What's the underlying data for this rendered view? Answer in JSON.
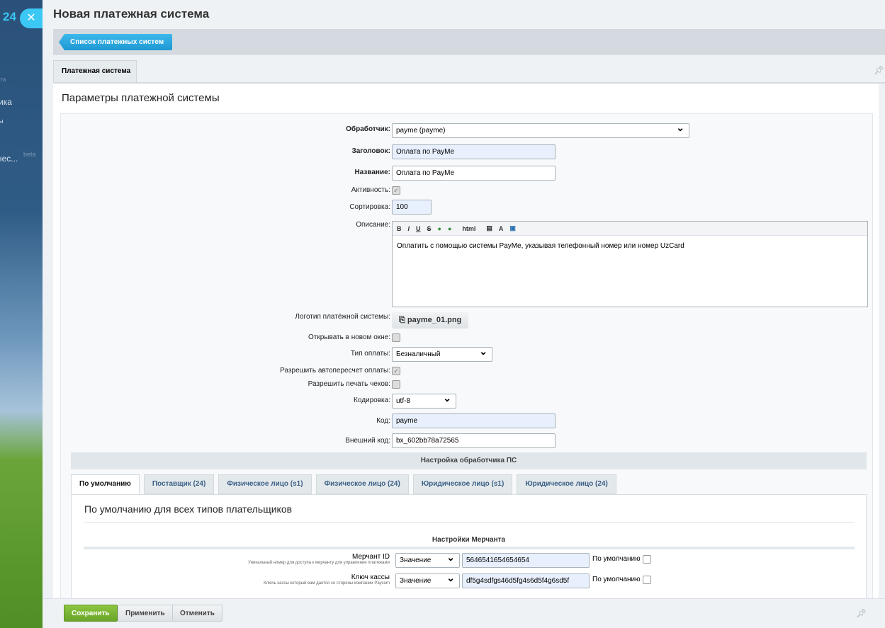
{
  "sidebar": {
    "logo_fragment": "24",
    "items": [
      "ета",
      "ика",
      "ы",
      "нес...",
      "beta"
    ]
  },
  "title": "Новая платежная система",
  "toolbar": {
    "back_label": "Список платежных систем"
  },
  "main_tab": "Платежная система",
  "section_title": "Параметры платежной системы",
  "form": {
    "handler_label": "Обработчик:",
    "handler_value": "payme (payme)",
    "heading_label": "Заголовок:",
    "heading_value": "Оплата по PayMe",
    "name_label": "Название:",
    "name_value": "Оплата по PayMe",
    "active_label": "Активность:",
    "active_checked": true,
    "sort_label": "Сортировка:",
    "sort_value": "100",
    "description_label": "Описание:",
    "editor_tools": [
      "B",
      "I",
      "U",
      "S",
      "link-icon",
      "unlink-icon",
      "html",
      "paste-icon",
      "font-icon",
      "image-icon"
    ],
    "description_value": "Оплатить с помощью системы PayMe, указывая телефонный номер или номер UzCard",
    "logo_label": "Логотип платёжной системы:",
    "logo_file": "payme_01.png",
    "new_window_label": "Открывать в новом окне:",
    "new_window_checked": false,
    "pay_type_label": "Тип оплаты:",
    "pay_type_value": "Безналичный",
    "autorecalc_label": "Разрешить автопересчет оплаты:",
    "autorecalc_checked": true,
    "print_label": "Разрешить печать чеков:",
    "print_checked": false,
    "encoding_label": "Кодировка:",
    "encoding_value": "utf-8",
    "code_label": "Код:",
    "code_value": "payme",
    "ext_code_label": "Внешний код:",
    "ext_code_value": "bx_602bb78a72565"
  },
  "handler_settings": {
    "title": "Настройка обработчика ПС",
    "tabs": [
      "По умолчанию",
      "Поставщик (24)",
      "Физическое лицо (s1)",
      "Физическое лицо (24)",
      "Юридическое лицо (s1)",
      "Юридическое лицо (24)"
    ],
    "active_tab": 0,
    "heading": "По умолчанию для всех типов плательщиков",
    "merchant_section": "Настройки Мерчанта",
    "rows": [
      {
        "label": "Мерчант ID",
        "hint": "Уникальный номер для доступа к мерчанту для управление платежами",
        "type": "Значение",
        "value": "5646541654654654",
        "default_label": "По умолчанию"
      },
      {
        "label": "Ключ кассы",
        "hint": "Ключь кассы который вам дается со стороны компании Paycom",
        "type": "Значение",
        "value": "df5g4sdfgs46d5fg4s6d5f4g6sd5f",
        "default_label": "По умолчанию"
      }
    ]
  },
  "buttons": {
    "save": "Сохранить",
    "apply": "Применить",
    "cancel": "Отменить"
  },
  "colors": {
    "accent": "#3bc8f5",
    "save": "#7ab534"
  }
}
